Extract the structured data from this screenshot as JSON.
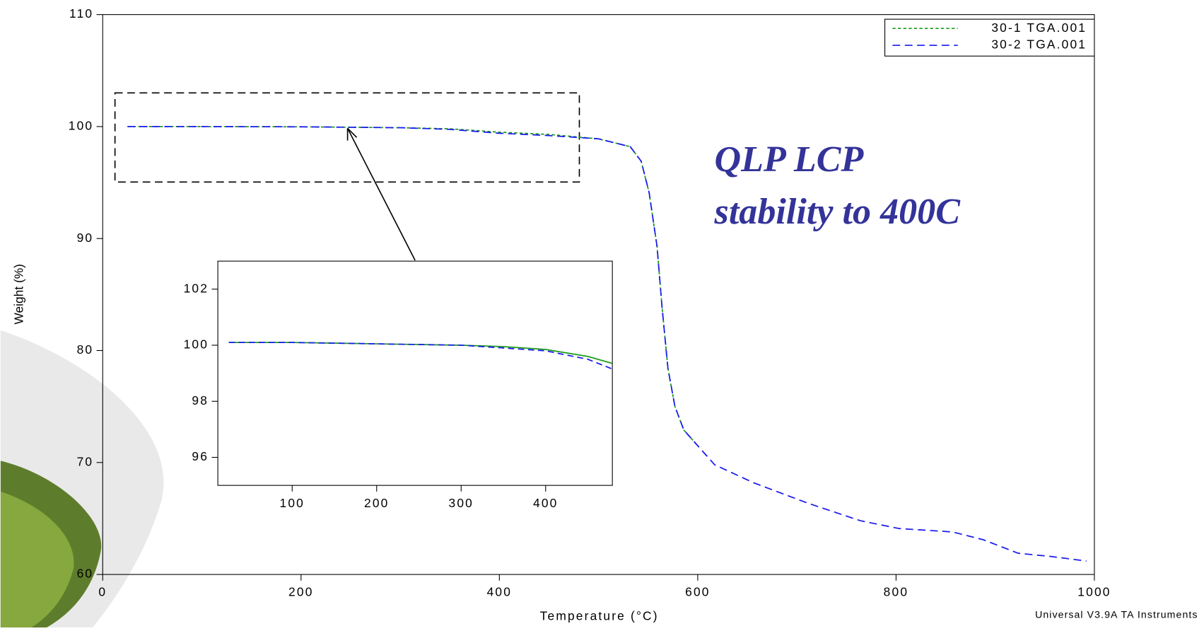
{
  "chart_data": [
    {
      "type": "line",
      "xlabel": "Temperature (°C)",
      "ylabel": "Weight (%)",
      "xlim": [
        0,
        1000
      ],
      "xticks": [
        0,
        200,
        400,
        600,
        800,
        1000
      ],
      "ylim": [
        60,
        110
      ],
      "yticks": [
        60,
        70,
        80,
        90,
        100,
        110
      ],
      "legend": "upper right",
      "annotations": [
        "QLP LCP",
        "stability to 400C"
      ],
      "credit": "Universal V3.9A TA Instruments",
      "series": [
        {
          "name": "30-1 TGA.001",
          "color": "#1a9a1a",
          "dash": "4,3",
          "x": [
            25,
            100,
            200,
            300,
            350,
            400,
            450,
            500,
            532,
            543,
            551,
            559,
            564,
            570,
            577,
            586,
            598
          ],
          "values": [
            100,
            100,
            99.98,
            99.9,
            99.8,
            99.5,
            99.3,
            98.9,
            98.2,
            96.9,
            94.1,
            89.3,
            83.9,
            78.4,
            75,
            72.9,
            71.7
          ]
        },
        {
          "name": "30-2 TGA.001",
          "color": "#1a1aee",
          "dash": "10,6",
          "x": [
            25,
            100,
            200,
            300,
            350,
            400,
            450,
            500,
            532,
            543,
            551,
            559,
            564,
            570,
            577,
            586,
            598,
            617,
            656,
            710,
            764,
            803,
            857,
            888,
            923,
            957,
            992
          ],
          "values": [
            100,
            100,
            99.98,
            99.9,
            99.75,
            99.4,
            99.2,
            98.9,
            98.2,
            96.9,
            94.1,
            89.3,
            83.9,
            78.4,
            75,
            72.9,
            71.7,
            69.8,
            68.2,
            66.4,
            64.8,
            64.1,
            63.8,
            63.1,
            61.9,
            61.6,
            61.2
          ]
        }
      ]
    },
    {
      "type": "line",
      "xlim": [
        12,
        479
      ],
      "xticks": [
        100,
        200,
        300,
        400
      ],
      "ylim": [
        95,
        103
      ],
      "yticks": [
        96,
        98,
        100,
        102
      ],
      "series": [
        {
          "color": "#1a9a1a",
          "dash": "",
          "x": [
            25,
            100,
            200,
            300,
            350,
            400,
            450,
            479
          ],
          "values": [
            100.1,
            100.1,
            100.05,
            100.0,
            99.95,
            99.85,
            99.6,
            99.35
          ]
        },
        {
          "color": "#1a1aee",
          "dash": "8,5",
          "x": [
            25,
            100,
            200,
            300,
            350,
            400,
            450,
            479
          ],
          "values": [
            100.1,
            100.1,
            100.05,
            100.0,
            99.9,
            99.8,
            99.5,
            99.15
          ]
        }
      ]
    }
  ]
}
